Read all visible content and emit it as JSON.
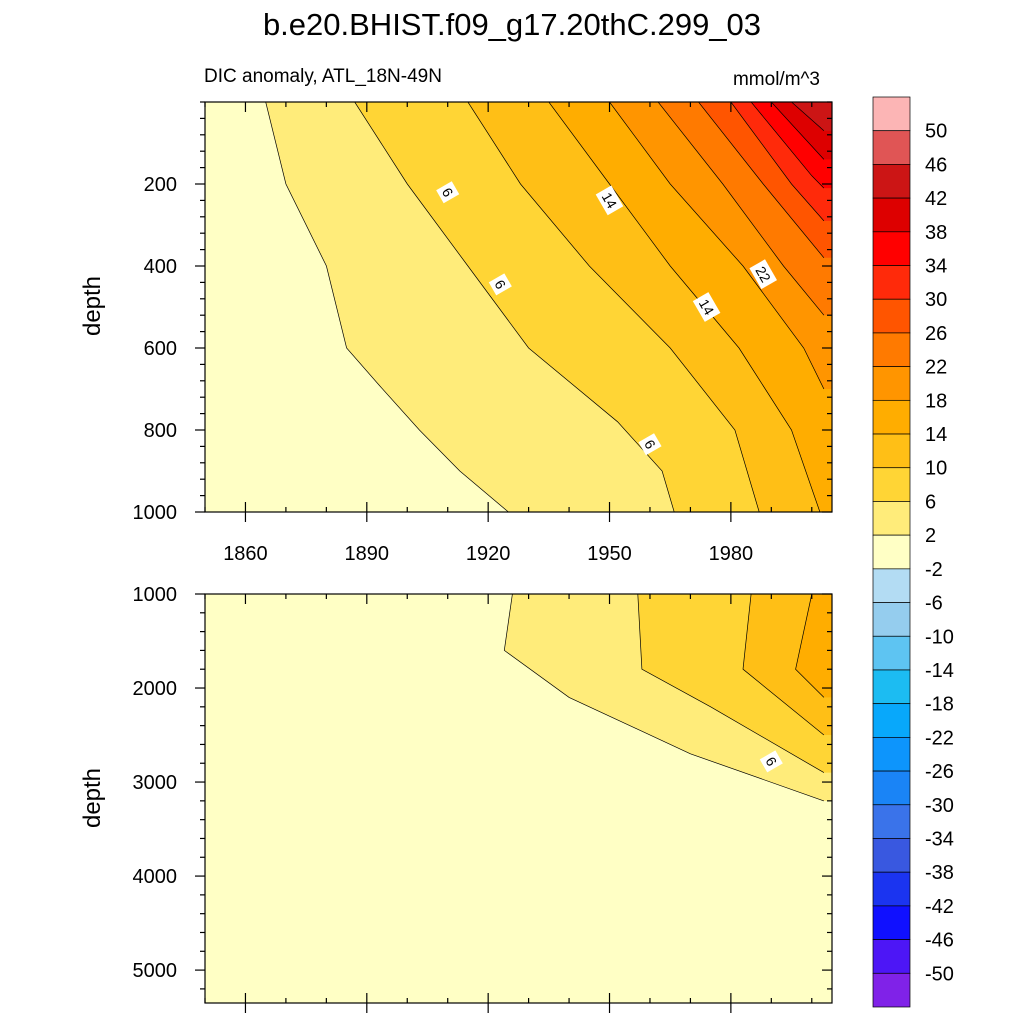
{
  "chart_data": {
    "type": "heatmap",
    "title": "b.e20.BHIST.f09_g17.20thC.299_03",
    "subtitle_left": "DIC anomaly, ATL_18N-49N",
    "subtitle_right": "mmol/m^3",
    "xlabel": "",
    "ylabel": "depth",
    "x_range": [
      1850,
      2005
    ],
    "x_ticks": [
      1860,
      1890,
      1920,
      1950,
      1980
    ],
    "x_tick_labels": [
      "1860",
      "1890",
      "1920",
      "1950",
      "1980"
    ],
    "upper_panel": {
      "ylim": [
        0,
        1000
      ],
      "y_ticks": [
        200,
        400,
        600,
        800,
        1000
      ],
      "y_tick_labels": [
        "200",
        "400",
        "600",
        "800",
        "1000"
      ],
      "contour_labels": [
        {
          "text": "6",
          "x": 1910,
          "y": 220
        },
        {
          "text": "14",
          "x": 1950,
          "y": 240
        },
        {
          "text": "6",
          "x": 1923,
          "y": 445
        },
        {
          "text": "22",
          "x": 1988,
          "y": 420
        },
        {
          "text": "14",
          "x": 1974,
          "y": 500
        },
        {
          "text": "6",
          "x": 1960,
          "y": 835
        }
      ],
      "contour_lines": [
        {
          "level": 2,
          "points": [
            [
              1865,
              0
            ],
            [
              1870,
              200
            ],
            [
              1880,
              400
            ],
            [
              1885,
              600
            ],
            [
              1893,
              690
            ],
            [
              1903,
              800
            ],
            [
              1913,
              900
            ],
            [
              1925,
              1000
            ]
          ]
        },
        {
          "level": 6,
          "points": [
            [
              1887,
              0
            ],
            [
              1900,
              200
            ],
            [
              1915,
              400
            ],
            [
              1930,
              600
            ],
            [
              1952,
              780
            ],
            [
              1963,
              900
            ],
            [
              1966,
              1000
            ]
          ]
        },
        {
          "level": 10,
          "points": [
            [
              1915,
              0
            ],
            [
              1928,
              200
            ],
            [
              1945,
              400
            ],
            [
              1965,
              600
            ],
            [
              1981,
              800
            ],
            [
              1987,
              1000
            ]
          ]
        },
        {
          "level": 14,
          "points": [
            [
              1935,
              0
            ],
            [
              1950,
              200
            ],
            [
              1965,
              400
            ],
            [
              1982,
              600
            ],
            [
              1995,
              800
            ],
            [
              2002,
              1000
            ]
          ]
        },
        {
          "level": 18,
          "points": [
            [
              1950,
              0
            ],
            [
              1965,
              200
            ],
            [
              1983,
              400
            ],
            [
              1998,
              600
            ],
            [
              2003,
              700
            ]
          ]
        },
        {
          "level": 22,
          "points": [
            [
              1962,
              0
            ],
            [
              1978,
              200
            ],
            [
              1993,
              400
            ],
            [
              2003,
              520
            ]
          ]
        },
        {
          "level": 26,
          "points": [
            [
              1972,
              0
            ],
            [
              1988,
              200
            ],
            [
              2003,
              380
            ]
          ]
        },
        {
          "level": 30,
          "points": [
            [
              1980,
              0
            ],
            [
              1995,
              200
            ],
            [
              2003,
              290
            ]
          ]
        },
        {
          "level": 34,
          "points": [
            [
              1985,
              0
            ],
            [
              2000,
              180
            ],
            [
              2003,
              210
            ]
          ]
        },
        {
          "level": 38,
          "points": [
            [
              1990,
              0
            ],
            [
              2003,
              140
            ]
          ]
        },
        {
          "level": 42,
          "points": [
            [
              1995,
              0
            ],
            [
              2003,
              70
            ]
          ]
        }
      ]
    },
    "lower_panel": {
      "ylim": [
        1000,
        5350
      ],
      "y_ticks": [
        1000,
        2000,
        3000,
        4000,
        5000
      ],
      "y_tick_labels": [
        "1000",
        "2000",
        "3000",
        "4000",
        "5000"
      ],
      "contour_labels": [
        {
          "text": "6",
          "x": 1990,
          "y": 2780
        }
      ],
      "contour_lines": [
        {
          "level": 2,
          "points": [
            [
              1926,
              1000
            ],
            [
              1924,
              1600
            ],
            [
              1940,
              2100
            ],
            [
              1970,
              2700
            ],
            [
              2003,
              3200
            ]
          ]
        },
        {
          "level": 6,
          "points": [
            [
              1957,
              1000
            ],
            [
              1958,
              1800
            ],
            [
              1975,
              2200
            ],
            [
              2003,
              2900
            ]
          ]
        },
        {
          "level": 10,
          "points": [
            [
              1985,
              1000
            ],
            [
              1983,
              1800
            ],
            [
              2003,
              2500
            ]
          ]
        },
        {
          "level": 14,
          "points": [
            [
              2000,
              1000
            ],
            [
              1996,
              1800
            ],
            [
              2003,
              2100
            ]
          ]
        }
      ]
    },
    "colorbar": {
      "labels": [
        "50",
        "46",
        "42",
        "38",
        "34",
        "30",
        "26",
        "22",
        "18",
        "14",
        "10",
        "6",
        "2",
        "-2",
        "-6",
        "-10",
        "-14",
        "-18",
        "-22",
        "-26",
        "-30",
        "-34",
        "-38",
        "-42",
        "-46",
        "-50"
      ],
      "colors": [
        "#fcb5b5",
        "#e05555",
        "#cc1515",
        "#dd0000",
        "#ff0000",
        "#ff2a0a",
        "#ff5500",
        "#ff7a00",
        "#ff9500",
        "#ffad00",
        "#ffbf16",
        "#ffd535",
        "#ffec7a",
        "#ffffc5",
        "#b3dcf3",
        "#95cdee",
        "#5ec4f2",
        "#1cbcf2",
        "#08a8fb",
        "#0d95fc",
        "#1a84f6",
        "#3a73ea",
        "#3958e0",
        "#1b34f0",
        "#1010ff",
        "#4d16f6",
        "#8022e8"
      ]
    },
    "upper_fill_layers": [
      {
        "level": 2,
        "color": "#ffec7a",
        "points": [
          [
            1865,
            0
          ],
          [
            1870,
            200
          ],
          [
            1880,
            400
          ],
          [
            1885,
            600
          ],
          [
            1893,
            690
          ],
          [
            1903,
            800
          ],
          [
            1913,
            900
          ],
          [
            1925,
            1000
          ]
        ]
      },
      {
        "level": 6,
        "color": "#ffd535",
        "points": [
          [
            1887,
            0
          ],
          [
            1900,
            200
          ],
          [
            1915,
            400
          ],
          [
            1930,
            600
          ],
          [
            1952,
            780
          ],
          [
            1963,
            900
          ],
          [
            1966,
            1000
          ]
        ]
      },
      {
        "level": 10,
        "color": "#ffbf16",
        "points": [
          [
            1915,
            0
          ],
          [
            1928,
            200
          ],
          [
            1945,
            400
          ],
          [
            1965,
            600
          ],
          [
            1981,
            800
          ],
          [
            1987,
            1000
          ]
        ]
      },
      {
        "level": 14,
        "color": "#ffad00",
        "points": [
          [
            1935,
            0
          ],
          [
            1950,
            200
          ],
          [
            1965,
            400
          ],
          [
            1982,
            600
          ],
          [
            1995,
            800
          ],
          [
            2002,
            1000
          ]
        ]
      },
      {
        "level": 18,
        "color": "#ff9500",
        "points": [
          [
            1950,
            0
          ],
          [
            1965,
            200
          ],
          [
            1983,
            400
          ],
          [
            1998,
            600
          ],
          [
            2003,
            700
          ]
        ]
      },
      {
        "level": 22,
        "color": "#ff7a00",
        "points": [
          [
            1962,
            0
          ],
          [
            1978,
            200
          ],
          [
            1993,
            400
          ],
          [
            2003,
            520
          ]
        ]
      },
      {
        "level": 26,
        "color": "#ff5500",
        "points": [
          [
            1972,
            0
          ],
          [
            1988,
            200
          ],
          [
            2003,
            380
          ]
        ]
      },
      {
        "level": 30,
        "color": "#ff2a0a",
        "points": [
          [
            1980,
            0
          ],
          [
            1995,
            200
          ],
          [
            2003,
            290
          ]
        ]
      },
      {
        "level": 34,
        "color": "#ff0000",
        "points": [
          [
            1985,
            0
          ],
          [
            2000,
            180
          ],
          [
            2003,
            210
          ]
        ]
      },
      {
        "level": 38,
        "color": "#dd0000",
        "points": [
          [
            1990,
            0
          ],
          [
            2003,
            140
          ]
        ]
      },
      {
        "level": 42,
        "color": "#cc1515",
        "points": [
          [
            1995,
            0
          ],
          [
            2003,
            70
          ]
        ]
      }
    ],
    "lower_fill_layers": [
      {
        "level": 2,
        "color": "#ffec7a",
        "points": [
          [
            1926,
            1000
          ],
          [
            1924,
            1600
          ],
          [
            1940,
            2100
          ],
          [
            1970,
            2700
          ],
          [
            2003,
            3200
          ]
        ]
      },
      {
        "level": 6,
        "color": "#ffd535",
        "points": [
          [
            1957,
            1000
          ],
          [
            1958,
            1800
          ],
          [
            1975,
            2200
          ],
          [
            2003,
            2900
          ]
        ]
      },
      {
        "level": 10,
        "color": "#ffbf16",
        "points": [
          [
            1985,
            1000
          ],
          [
            1983,
            1800
          ],
          [
            2003,
            2500
          ]
        ]
      },
      {
        "level": 14,
        "color": "#ffad00",
        "points": [
          [
            2000,
            1000
          ],
          [
            1996,
            1800
          ],
          [
            2003,
            2100
          ]
        ]
      }
    ],
    "background_color": "#ffffc5"
  }
}
